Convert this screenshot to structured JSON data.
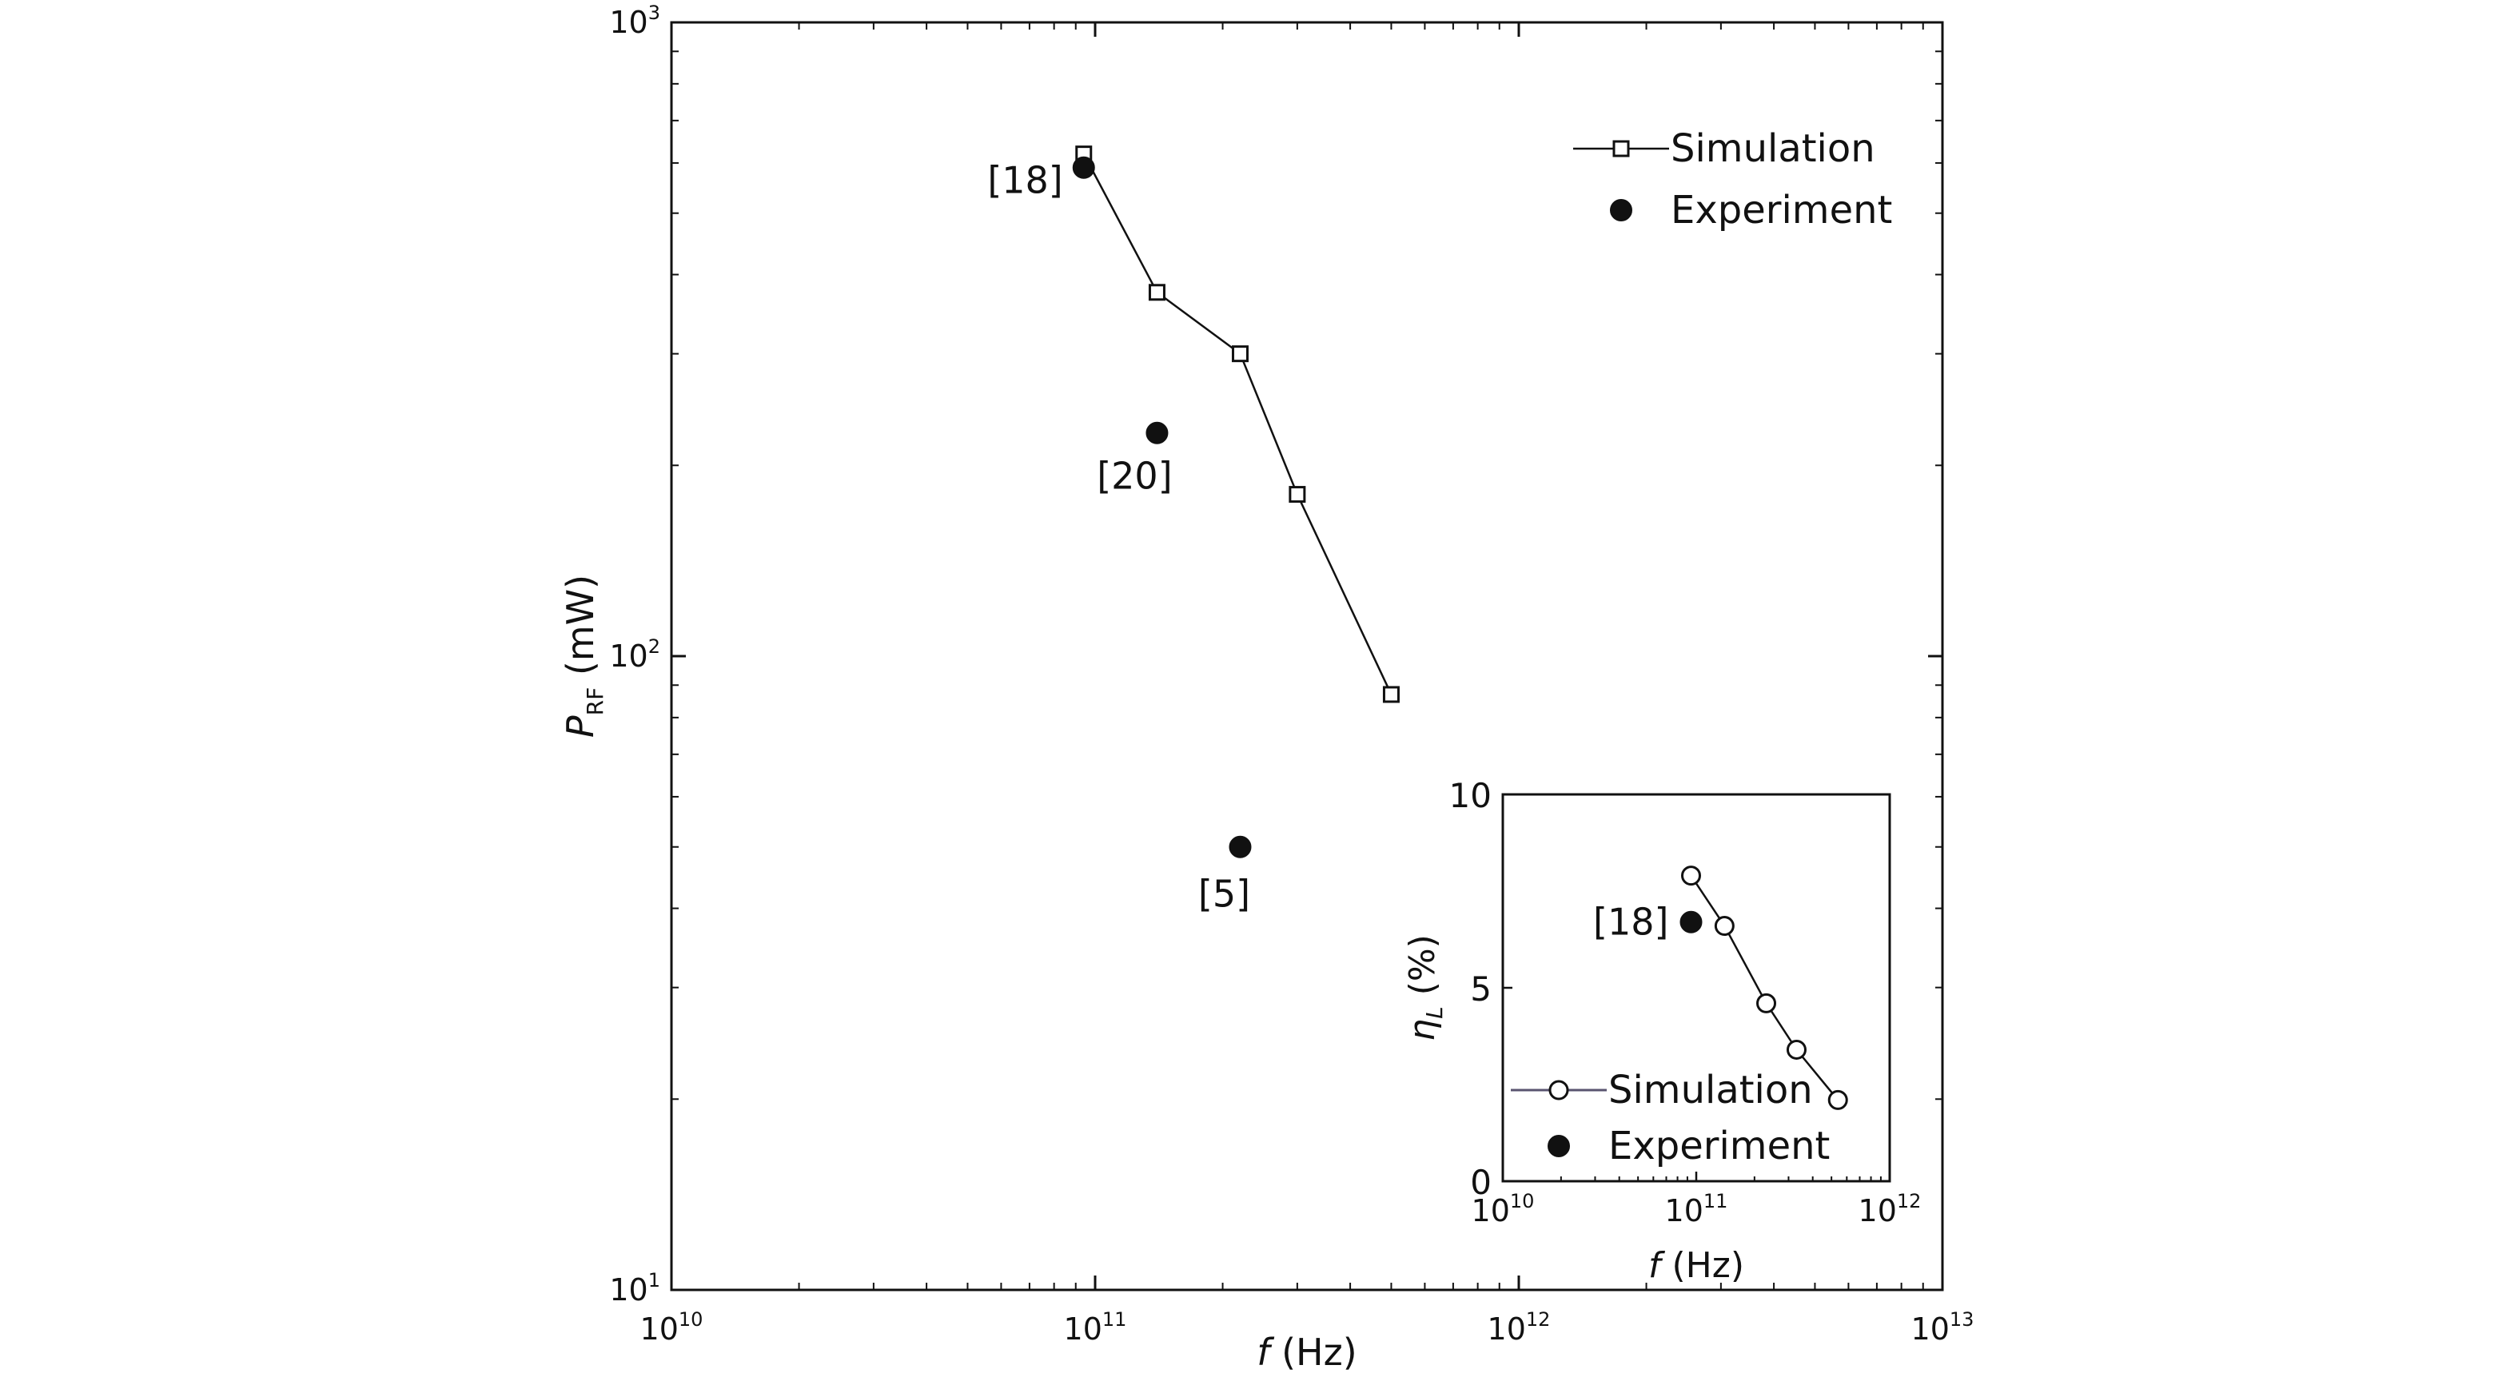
{
  "chart_data": [
    {
      "type": "line",
      "xscale": "log",
      "yscale": "log",
      "xlim": [
        10000000000,
        10000000000000
      ],
      "ylim": [
        10,
        1000
      ],
      "x_ticks": [
        {
          "base": "10",
          "exp": "10",
          "value": 10000000000
        },
        {
          "base": "10",
          "exp": "11",
          "value": 100000000000
        },
        {
          "base": "10",
          "exp": "12",
          "value": 1000000000000
        },
        {
          "base": "10",
          "exp": "13",
          "value": 10000000000000
        }
      ],
      "y_ticks": [
        {
          "base": "10",
          "exp": "1",
          "value": 10
        },
        {
          "base": "10",
          "exp": "2",
          "value": 100
        },
        {
          "base": "10",
          "exp": "3",
          "value": 1000
        }
      ],
      "xlabel": {
        "symbol": "f",
        "unit": " (Hz)"
      },
      "ylabel": {
        "symbol": "P",
        "subscript": "RF",
        "unit": " (mW)"
      },
      "legend_position": "top-right",
      "grid": false,
      "series": [
        {
          "name": "Simulation",
          "marker": "open-square",
          "line": true,
          "points": [
            {
              "x": 94000000000,
              "y": 620
            },
            {
              "x": 140000000000,
              "y": 375
            },
            {
              "x": 220000000000,
              "y": 300
            },
            {
              "x": 300000000000,
              "y": 180
            },
            {
              "x": 500000000000,
              "y": 87
            }
          ]
        },
        {
          "name": "Experiment",
          "marker": "filled-circle",
          "line": false,
          "points": [
            {
              "x": 94000000000,
              "y": 590,
              "label": "[18]"
            },
            {
              "x": 140000000000,
              "y": 225,
              "label": "[20]"
            },
            {
              "x": 220000000000,
              "y": 50,
              "label": "[5]"
            }
          ]
        }
      ]
    },
    {
      "type": "line",
      "inset": true,
      "xscale": "log",
      "yscale": "linear",
      "xlim": [
        10000000000,
        1000000000000
      ],
      "ylim": [
        0,
        10
      ],
      "x_ticks": [
        {
          "base": "10",
          "exp": "10",
          "value": 10000000000
        },
        {
          "base": "10",
          "exp": "11",
          "value": 100000000000
        },
        {
          "base": "10",
          "exp": "12",
          "value": 1000000000000
        }
      ],
      "y_ticks": [
        {
          "label": "0",
          "value": 0
        },
        {
          "label": "5",
          "value": 5
        },
        {
          "label": "10",
          "value": 10
        }
      ],
      "xlabel": {
        "symbol": "f",
        "unit": " (Hz)"
      },
      "ylabel": {
        "symbol": "η",
        "subscript": "L",
        "unit": " (%)"
      },
      "legend_position": "bottom-left",
      "grid": false,
      "series": [
        {
          "name": "Simulation",
          "marker": "open-circle",
          "line": true,
          "points": [
            {
              "x": 94000000000,
              "y": 7.9
            },
            {
              "x": 140000000000,
              "y": 6.6
            },
            {
              "x": 230000000000,
              "y": 4.6
            },
            {
              "x": 330000000000,
              "y": 3.4
            },
            {
              "x": 540000000000,
              "y": 2.1
            }
          ]
        },
        {
          "name": "Experiment",
          "marker": "filled-circle",
          "line": false,
          "points": [
            {
              "x": 94000000000,
              "y": 6.7,
              "label": "[18]"
            }
          ]
        }
      ]
    }
  ]
}
